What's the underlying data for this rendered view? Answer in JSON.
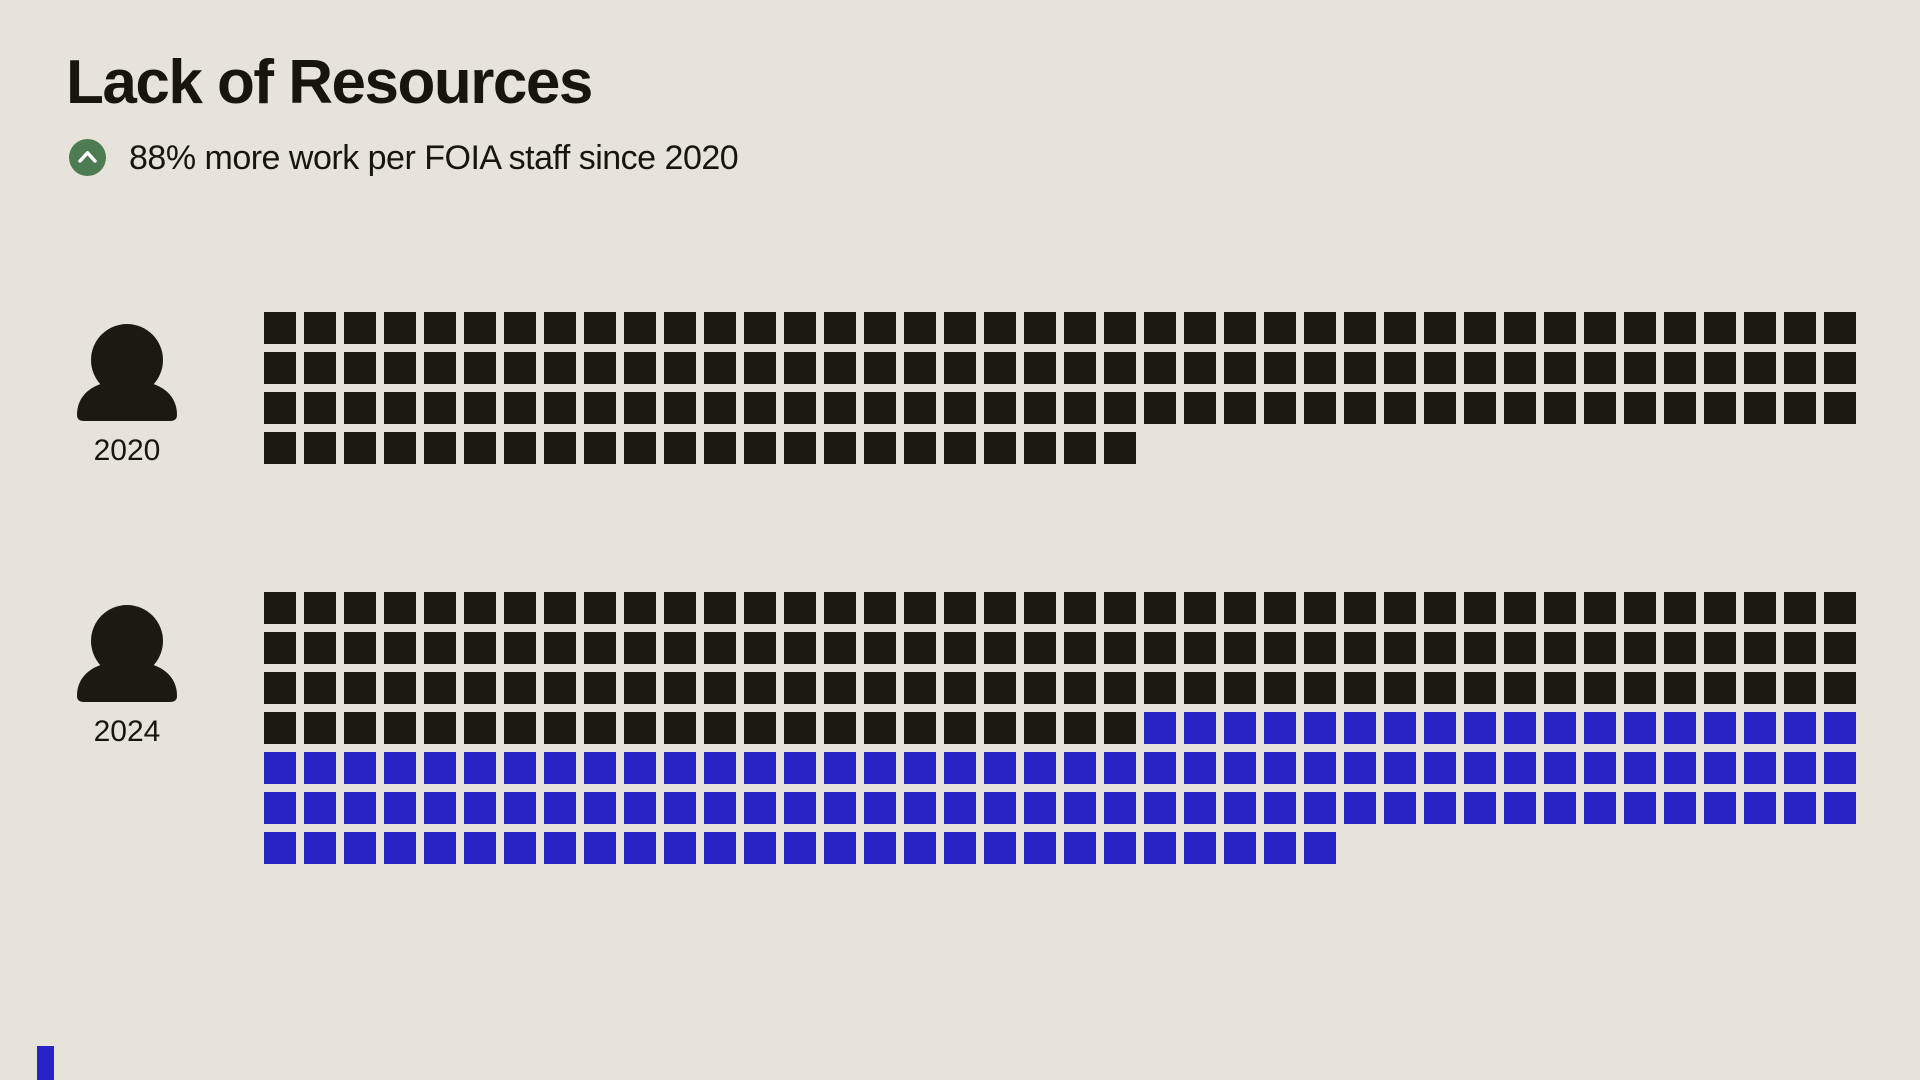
{
  "page": {
    "background": "#e6e3db"
  },
  "header": {
    "title": "Lack of Resources",
    "subtitle": "88% more work per FOIA staff since 2020",
    "subtitle_icon": "chevron-up-circle-icon"
  },
  "colors": {
    "background": "#e6e3db",
    "ink": "#1a1a13",
    "base_square": "#1a1a13",
    "extra_square": "#2823c4",
    "accent_green": "#4e7c52",
    "chevron": "#ffffff"
  },
  "chart_data": {
    "type": "waffle",
    "title": "Lack of Resources",
    "subtitle": "88% more work per FOIA staff since 2020",
    "columns": 40,
    "square_size": 32,
    "square_gap": 8,
    "rows": [
      {
        "label": "2020",
        "icon": "person-icon",
        "base_units": 142,
        "extra_units": 0,
        "total": 142
      },
      {
        "label": "2024",
        "icon": "person-icon",
        "base_units": 142,
        "extra_units": 125,
        "total": 267
      }
    ],
    "colors": {
      "base": "#1a1a13",
      "extra": "#2823c4"
    },
    "legend_position": "none",
    "increase_percent": "88%"
  }
}
